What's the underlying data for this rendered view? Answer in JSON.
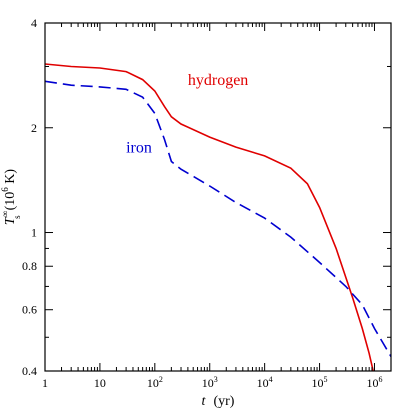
{
  "chart_data": {
    "type": "line",
    "xscale": "log",
    "yscale": "log",
    "xlim": [
      1,
      2000000
    ],
    "ylim": [
      0.4,
      4
    ],
    "xlabel": {
      "symbol": "t",
      "unit": "(yr)"
    },
    "ylabel": {
      "symbol": "T",
      "superscript": "∞",
      "subscript": "s",
      "unit_prefix": "(10",
      "unit_exponent": "6",
      "unit_suffix": " K)"
    },
    "xticks": [
      {
        "value": 1,
        "base": "1",
        "exp": ""
      },
      {
        "value": 10,
        "base": "10",
        "exp": ""
      },
      {
        "value": 100,
        "base": "10",
        "exp": "2"
      },
      {
        "value": 1000,
        "base": "10",
        "exp": "3"
      },
      {
        "value": 10000,
        "base": "10",
        "exp": "4"
      },
      {
        "value": 100000,
        "base": "10",
        "exp": "5"
      },
      {
        "value": 1000000,
        "base": "10",
        "exp": "6"
      }
    ],
    "yticks": [
      {
        "value": 0.4,
        "label": "0.4"
      },
      {
        "value": 0.6,
        "label": "0.6"
      },
      {
        "value": 0.8,
        "label": "0.8"
      },
      {
        "value": 1,
        "label": "1"
      },
      {
        "value": 2,
        "label": "2"
      },
      {
        "value": 4,
        "label": "4"
      }
    ],
    "series": [
      {
        "name": "hydrogen",
        "color": "#e00000",
        "dash": "solid",
        "label_at": {
          "x": 400,
          "y": 2.65
        },
        "points": [
          [
            1,
            3.05
          ],
          [
            3,
            3.0
          ],
          [
            10,
            2.97
          ],
          [
            30,
            2.9
          ],
          [
            60,
            2.75
          ],
          [
            100,
            2.55
          ],
          [
            150,
            2.3
          ],
          [
            200,
            2.15
          ],
          [
            300,
            2.05
          ],
          [
            1000,
            1.88
          ],
          [
            3000,
            1.76
          ],
          [
            10000,
            1.66
          ],
          [
            30000,
            1.53
          ],
          [
            60000,
            1.38
          ],
          [
            100000,
            1.18
          ],
          [
            200000,
            0.9
          ],
          [
            400000,
            0.65
          ],
          [
            600000,
            0.53
          ],
          [
            800000,
            0.45
          ],
          [
            950000,
            0.4
          ]
        ]
      },
      {
        "name": "iron",
        "color": "#0000d0",
        "dash": "dashed",
        "label_at": {
          "x": 30,
          "y": 1.7
        },
        "points": [
          [
            1,
            2.72
          ],
          [
            3,
            2.65
          ],
          [
            10,
            2.62
          ],
          [
            30,
            2.58
          ],
          [
            60,
            2.45
          ],
          [
            100,
            2.2
          ],
          [
            150,
            1.85
          ],
          [
            200,
            1.6
          ],
          [
            300,
            1.52
          ],
          [
            1000,
            1.36
          ],
          [
            3000,
            1.22
          ],
          [
            10000,
            1.1
          ],
          [
            30000,
            0.97
          ],
          [
            100000,
            0.82
          ],
          [
            300000,
            0.7
          ],
          [
            600000,
            0.62
          ],
          [
            1000000,
            0.53
          ],
          [
            2000000,
            0.44
          ]
        ]
      }
    ]
  }
}
